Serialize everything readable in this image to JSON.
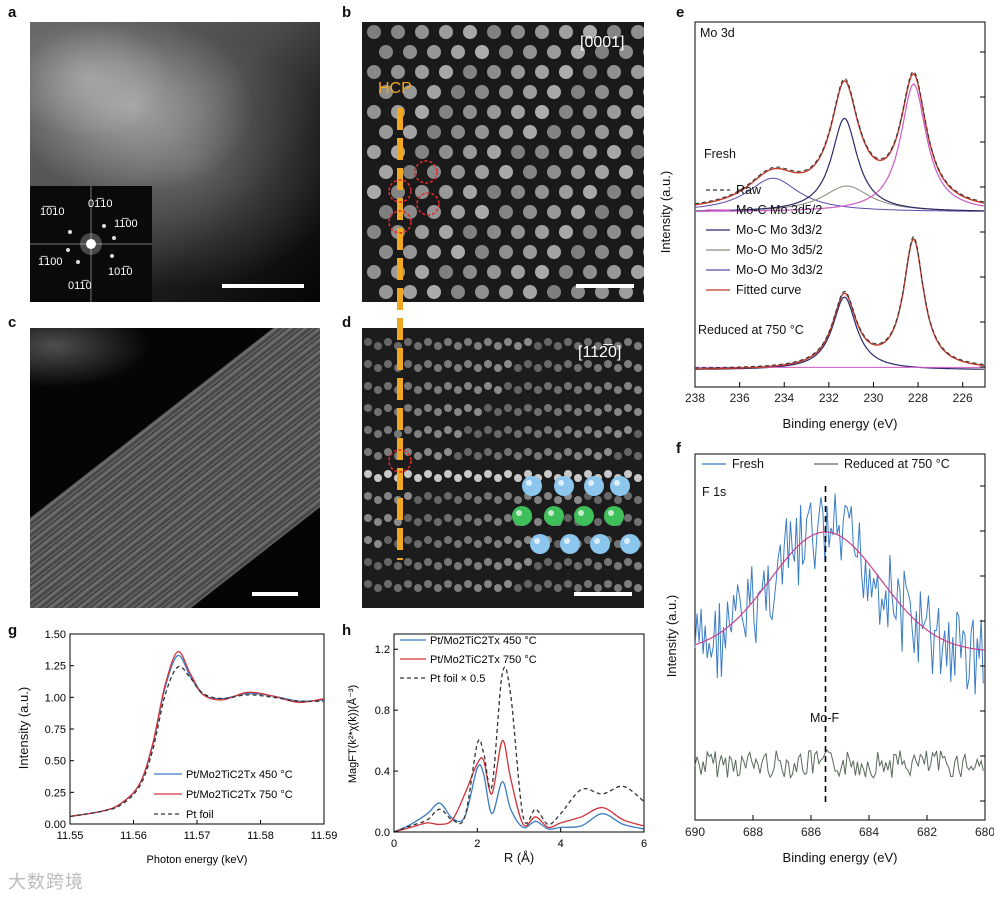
{
  "panels": {
    "a": {
      "letter": "a",
      "fft_labels": [
        "1̅0̅10",
        "01̅10",
        "11̅00",
        "1̅100",
        "101̅0",
        "011̅0"
      ]
    },
    "b": {
      "letter": "b",
      "zone": "[0001]",
      "hcp": "HCP"
    },
    "c": {
      "letter": "c"
    },
    "d": {
      "letter": "d",
      "zone": "[112̅0]"
    },
    "e": {
      "letter": "e",
      "title": "Mo 3d",
      "fresh": "Fresh",
      "reduced": "Reduced at 750 °C",
      "legend": [
        "Raw",
        "Mo-C Mo 3d5/2",
        "Mo-C Mo 3d3/2",
        "Mo-O Mo 3d5/2",
        "Mo-O Mo 3d3/2",
        "Fitted curve"
      ],
      "xlabel": "Binding energy (eV)",
      "ylabel": "Intensity (a.u.)"
    },
    "f": {
      "letter": "f",
      "title": "F 1s",
      "legend": [
        "Fresh",
        "Reduced at 750 °C"
      ],
      "annot": "Mo-F",
      "xlabel": "Binding energy (eV)",
      "ylabel": "Intensity (a.u.)"
    },
    "g": {
      "letter": "g",
      "xlabel": "Photon energy (keV)",
      "ylabel": "Intensity (a.u.)",
      "legend": [
        "Pt/Mo2TiC2Tx 450 °C",
        "Pt/Mo2TiC2Tx 750 °C",
        "Pt foil"
      ]
    },
    "h": {
      "letter": "h",
      "xlabel": "R (Å)",
      "ylabel": "MagFT(k²*χ(k))(Å⁻³)",
      "legend": [
        "Pt/Mo2TiC2Tx 450 °C",
        "Pt/Mo2TiC2Tx 750 °C",
        "Pt foil × 0.5"
      ]
    }
  },
  "watermark": "大数跨境",
  "colors": {
    "blue": "#3b7dc4",
    "red": "#d0343a",
    "dash": "#333333",
    "magenta": "#cc5bc4",
    "navy": "#2a2a6a",
    "olive": "#8a8a7a",
    "purple": "#5a4aa8",
    "fitred": "#c0392b",
    "gray": "#5a6a5a",
    "hcp": "#f0a820"
  },
  "chart_data": [
    {
      "id": "e",
      "type": "line",
      "title": "Mo 3d",
      "xlabel": "Binding energy (eV)",
      "ylabel": "Intensity (a.u.)",
      "xlim": [
        238,
        225
      ],
      "xticks": [
        238,
        236,
        234,
        232,
        230,
        228,
        226
      ],
      "series": [
        {
          "name": "Raw (Fresh)",
          "peaks": [
            [
              231.3,
              1.0
            ],
            [
              228.2,
              1.2
            ]
          ]
        },
        {
          "name": "Raw (Reduced at 750 °C)",
          "peaks": [
            [
              231.3,
              0.85
            ],
            [
              228.2,
              1.2
            ]
          ]
        }
      ]
    },
    {
      "id": "f",
      "type": "line",
      "title": "F 1s",
      "xlabel": "Binding energy (eV)",
      "ylabel": "Intensity (a.u.)",
      "xlim": [
        690,
        680
      ],
      "xticks": [
        690,
        688,
        686,
        684,
        682,
        680
      ],
      "series": [
        {
          "name": "Fresh",
          "center": 685.5
        },
        {
          "name": "Reduced at 750 °C"
        }
      ],
      "annotation": {
        "text": "Mo-F",
        "x": 685.5
      }
    },
    {
      "id": "g",
      "type": "line",
      "xlabel": "Photon energy (keV)",
      "ylabel": "Intensity (a.u.)",
      "xlim": [
        11.55,
        11.59
      ],
      "ylim": [
        0.0,
        1.5
      ],
      "xticks": [
        11.55,
        11.56,
        11.57,
        11.58,
        11.59
      ],
      "yticks": [
        0.0,
        0.25,
        0.5,
        0.75,
        1.0,
        1.25,
        1.5
      ],
      "series": [
        {
          "name": "Pt/Mo2TiC2Tx 450 °C",
          "x": [
            11.55,
            11.555,
            11.558,
            11.561,
            11.563,
            11.565,
            11.567,
            11.569,
            11.571,
            11.574,
            11.578,
            11.582,
            11.586,
            11.59
          ],
          "y": [
            0.06,
            0.1,
            0.16,
            0.32,
            0.62,
            1.08,
            1.33,
            1.16,
            1.02,
            0.99,
            1.03,
            1.01,
            0.97,
            0.98
          ]
        },
        {
          "name": "Pt/Mo2TiC2Tx 750 °C",
          "x": [
            11.55,
            11.555,
            11.558,
            11.561,
            11.563,
            11.565,
            11.567,
            11.569,
            11.571,
            11.574,
            11.578,
            11.582,
            11.586,
            11.59
          ],
          "y": [
            0.06,
            0.1,
            0.16,
            0.32,
            0.63,
            1.1,
            1.36,
            1.18,
            1.02,
            0.98,
            1.04,
            1.01,
            0.96,
            0.99
          ]
        },
        {
          "name": "Pt foil",
          "x": [
            11.55,
            11.555,
            11.558,
            11.561,
            11.563,
            11.565,
            11.567,
            11.569,
            11.571,
            11.574,
            11.578,
            11.582,
            11.586,
            11.59
          ],
          "y": [
            0.06,
            0.1,
            0.15,
            0.3,
            0.58,
            1.02,
            1.24,
            1.15,
            1.03,
            0.99,
            1.02,
            1.0,
            0.97,
            0.97
          ]
        }
      ]
    },
    {
      "id": "h",
      "type": "line",
      "xlabel": "R (Å)",
      "ylabel": "MagFT(k²*χ(k))(Å⁻³)",
      "xlim": [
        0,
        6
      ],
      "ylim": [
        0,
        1.3
      ],
      "xticks": [
        0,
        2,
        4,
        6
      ],
      "yticks": [
        0.0,
        0.4,
        0.8,
        1.2
      ],
      "series": [
        {
          "name": "Pt/Mo2TiC2Tx 450 °C",
          "x": [
            0,
            0.4,
            0.8,
            1.1,
            1.4,
            1.7,
            2.0,
            2.15,
            2.35,
            2.6,
            2.8,
            3.1,
            3.4,
            3.7,
            4.0,
            4.5,
            5.0,
            5.5,
            6.0
          ],
          "y": [
            0.0,
            0.05,
            0.12,
            0.19,
            0.09,
            0.1,
            0.42,
            0.38,
            0.12,
            0.33,
            0.15,
            0.03,
            0.07,
            0.02,
            0.03,
            0.04,
            0.12,
            0.05,
            0.02
          ]
        },
        {
          "name": "Pt/Mo2TiC2Tx 750 °C",
          "x": [
            0,
            0.4,
            0.8,
            1.1,
            1.4,
            1.7,
            2.0,
            2.15,
            2.35,
            2.6,
            2.8,
            3.1,
            3.4,
            3.7,
            4.0,
            4.5,
            5.0,
            5.5,
            6.0
          ],
          "y": [
            0.0,
            0.03,
            0.06,
            0.05,
            0.08,
            0.25,
            0.45,
            0.47,
            0.25,
            0.6,
            0.35,
            0.05,
            0.1,
            0.03,
            0.06,
            0.1,
            0.16,
            0.08,
            0.04
          ]
        },
        {
          "name": "Pt foil × 0.5",
          "x": [
            0,
            0.4,
            0.8,
            1.1,
            1.4,
            1.7,
            2.0,
            2.15,
            2.35,
            2.6,
            2.8,
            3.1,
            3.4,
            3.7,
            4.0,
            4.5,
            5.0,
            5.5,
            6.0
          ],
          "y": [
            0.0,
            0.04,
            0.08,
            0.15,
            0.08,
            0.1,
            0.58,
            0.52,
            0.3,
            1.04,
            0.9,
            0.1,
            0.15,
            0.05,
            0.12,
            0.28,
            0.25,
            0.3,
            0.2
          ]
        }
      ]
    }
  ]
}
